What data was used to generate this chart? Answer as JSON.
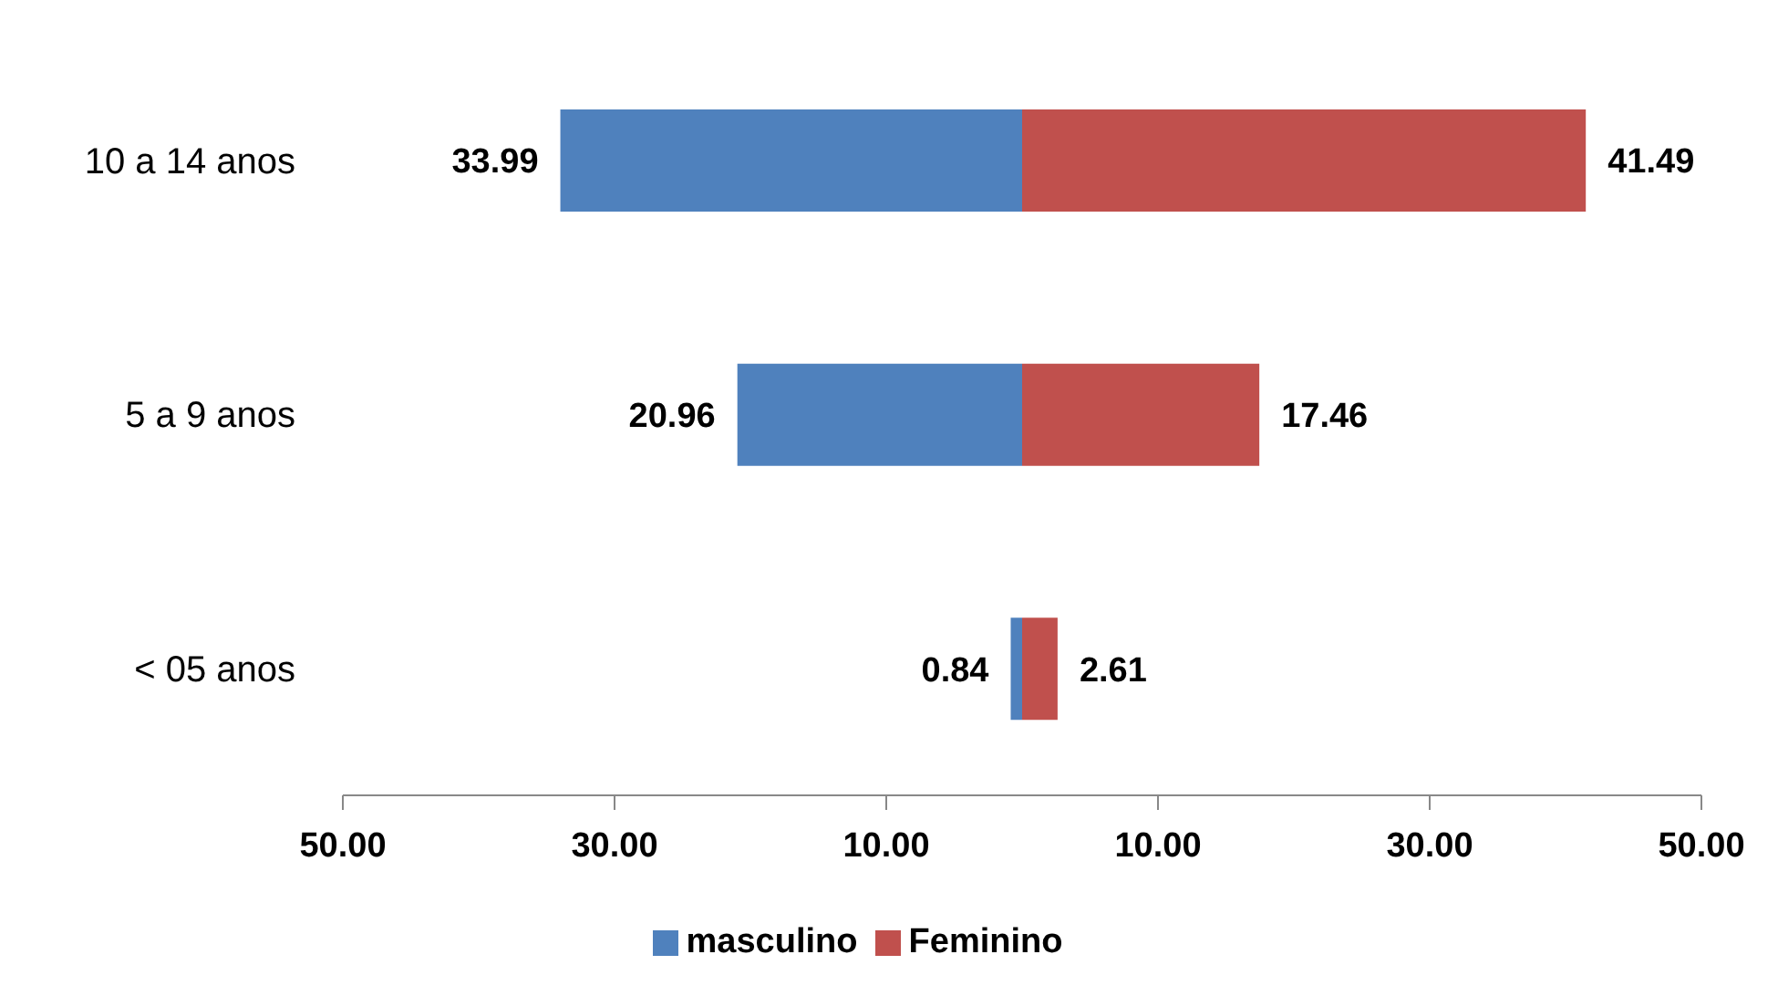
{
  "chart_data": {
    "type": "bar",
    "orientation": "horizontal",
    "categories": [
      "10 a 14 anos",
      "5 a 9 anos",
      "< 05 anos"
    ],
    "series": [
      {
        "name": "masculino",
        "color": "#4f81bd",
        "values": [
          33.99,
          20.96,
          0.84
        ],
        "base": [
          -33.99,
          -20.96,
          -0.84
        ]
      },
      {
        "name": "Feminino",
        "color": "#c0504d",
        "values": [
          41.49,
          17.46,
          2.61
        ]
      }
    ],
    "data_labels": true,
    "xlim": [
      -50,
      50
    ],
    "xticks": [
      {
        "value": -50,
        "label": "50.00"
      },
      {
        "value": -30,
        "label": "30.00"
      },
      {
        "value": -10,
        "label": "10.00"
      },
      {
        "value": 10,
        "label": "10.00"
      },
      {
        "value": 30,
        "label": "30.00"
      },
      {
        "value": 50,
        "label": "50.00"
      }
    ],
    "legend": "bottom"
  }
}
